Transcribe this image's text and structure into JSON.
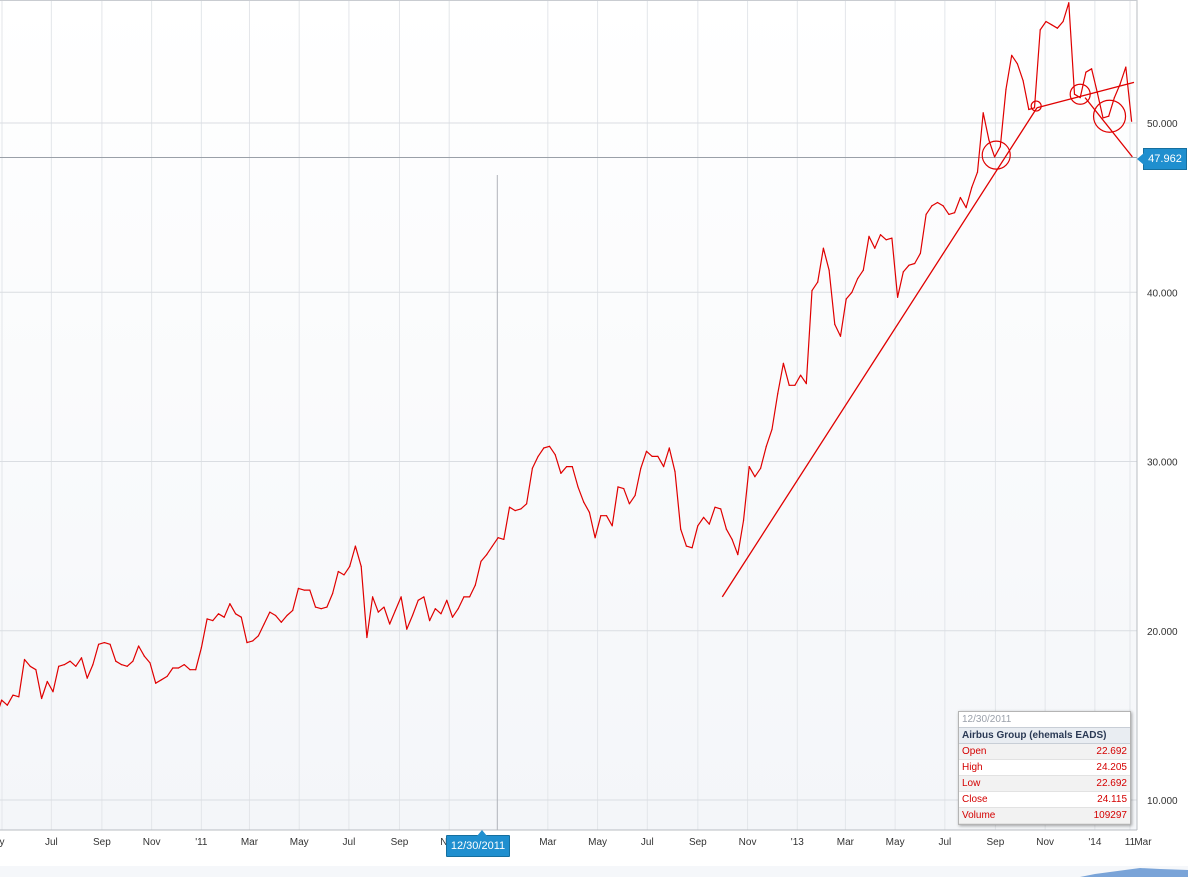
{
  "chart_data": {
    "type": "line",
    "title": "",
    "xlabel": "",
    "ylabel": "",
    "ylim": [
      8.2,
      57.2
    ],
    "grid": true,
    "y_ticks": [
      "10.000",
      "20.000",
      "30.000",
      "40.000",
      "50.000"
    ],
    "y_tick_values": [
      10,
      20,
      30,
      40,
      50
    ],
    "x_ticks": [
      {
        "label": "y",
        "date": "2010-05-01"
      },
      {
        "label": "Jul",
        "date": "2010-07-01"
      },
      {
        "label": "Sep",
        "date": "2010-09-01"
      },
      {
        "label": "Nov",
        "date": "2010-11-01"
      },
      {
        "label": "'11",
        "date": "2011-01-01"
      },
      {
        "label": "Mar",
        "date": "2011-03-01"
      },
      {
        "label": "May",
        "date": "2011-05-01"
      },
      {
        "label": "Jul",
        "date": "2011-07-01"
      },
      {
        "label": "Sep",
        "date": "2011-09-01"
      },
      {
        "label": "Nov",
        "date": "2011-11-01"
      },
      {
        "label": "Mar",
        "date": "2012-03-01"
      },
      {
        "label": "May",
        "date": "2012-05-01"
      },
      {
        "label": "Jul",
        "date": "2012-07-01"
      },
      {
        "label": "Sep",
        "date": "2012-09-01"
      },
      {
        "label": "Nov",
        "date": "2012-11-01"
      },
      {
        "label": "'13",
        "date": "2013-01-01"
      },
      {
        "label": "Mar",
        "date": "2013-03-01"
      },
      {
        "label": "May",
        "date": "2013-05-01"
      },
      {
        "label": "Jul",
        "date": "2013-07-01"
      },
      {
        "label": "Sep",
        "date": "2013-09-01"
      },
      {
        "label": "Nov",
        "date": "2013-11-01"
      },
      {
        "label": "'14",
        "date": "2014-01-01"
      },
      {
        "label": "Mar",
        "date": "2014-03-01"
      },
      {
        "label": "11",
        "date": "2014-04-11"
      }
    ],
    "series": [
      {
        "color": "#e00000",
        "points": [
          [
            "2010-04-20",
            14.2
          ],
          [
            "2010-05-01",
            15.9
          ],
          [
            "2010-05-08",
            15.6
          ],
          [
            "2010-05-15",
            16.2
          ],
          [
            "2010-05-22",
            16.1
          ],
          [
            "2010-05-29",
            18.3
          ],
          [
            "2010-06-05",
            17.9
          ],
          [
            "2010-06-12",
            17.7
          ],
          [
            "2010-06-19",
            16.0
          ],
          [
            "2010-06-26",
            17.0
          ],
          [
            "2010-07-03",
            16.4
          ],
          [
            "2010-07-10",
            17.9
          ],
          [
            "2010-07-17",
            18.0
          ],
          [
            "2010-07-24",
            18.2
          ],
          [
            "2010-07-31",
            17.9
          ],
          [
            "2010-08-07",
            18.4
          ],
          [
            "2010-08-14",
            17.2
          ],
          [
            "2010-08-21",
            18.0
          ],
          [
            "2010-08-28",
            19.2
          ],
          [
            "2010-09-04",
            19.3
          ],
          [
            "2010-09-11",
            19.2
          ],
          [
            "2010-09-18",
            18.2
          ],
          [
            "2010-09-25",
            18.0
          ],
          [
            "2010-10-02",
            17.9
          ],
          [
            "2010-10-09",
            18.2
          ],
          [
            "2010-10-16",
            19.1
          ],
          [
            "2010-10-23",
            18.5
          ],
          [
            "2010-10-30",
            18.1
          ],
          [
            "2010-11-06",
            16.9
          ],
          [
            "2010-11-13",
            17.1
          ],
          [
            "2010-11-20",
            17.3
          ],
          [
            "2010-11-27",
            17.8
          ],
          [
            "2010-12-04",
            17.8
          ],
          [
            "2010-12-11",
            18.0
          ],
          [
            "2010-12-18",
            17.7
          ],
          [
            "2010-12-25",
            17.7
          ],
          [
            "2011-01-01",
            19.0
          ],
          [
            "2011-01-08",
            20.7
          ],
          [
            "2011-01-15",
            20.6
          ],
          [
            "2011-01-22",
            21.0
          ],
          [
            "2011-01-29",
            20.8
          ],
          [
            "2011-02-05",
            21.6
          ],
          [
            "2011-02-12",
            21.0
          ],
          [
            "2011-02-19",
            20.8
          ],
          [
            "2011-02-26",
            19.3
          ],
          [
            "2011-03-05",
            19.4
          ],
          [
            "2011-03-12",
            19.7
          ],
          [
            "2011-03-19",
            20.4
          ],
          [
            "2011-03-26",
            21.1
          ],
          [
            "2011-04-02",
            20.9
          ],
          [
            "2011-04-09",
            20.5
          ],
          [
            "2011-04-16",
            20.9
          ],
          [
            "2011-04-23",
            21.2
          ],
          [
            "2011-04-30",
            22.5
          ],
          [
            "2011-05-07",
            22.4
          ],
          [
            "2011-05-14",
            22.4
          ],
          [
            "2011-05-21",
            21.4
          ],
          [
            "2011-05-28",
            21.3
          ],
          [
            "2011-06-04",
            21.4
          ],
          [
            "2011-06-11",
            22.2
          ],
          [
            "2011-06-18",
            23.5
          ],
          [
            "2011-06-25",
            23.3
          ],
          [
            "2011-07-02",
            23.8
          ],
          [
            "2011-07-09",
            25.0
          ],
          [
            "2011-07-16",
            23.8
          ],
          [
            "2011-07-23",
            19.6
          ],
          [
            "2011-07-30",
            22.0
          ],
          [
            "2011-08-06",
            21.1
          ],
          [
            "2011-08-13",
            21.4
          ],
          [
            "2011-08-20",
            20.4
          ],
          [
            "2011-08-27",
            21.2
          ],
          [
            "2011-09-03",
            22.0
          ],
          [
            "2011-09-10",
            20.1
          ],
          [
            "2011-09-17",
            20.9
          ],
          [
            "2011-09-24",
            21.8
          ],
          [
            "2011-10-01",
            22.0
          ],
          [
            "2011-10-08",
            20.6
          ],
          [
            "2011-10-15",
            21.3
          ],
          [
            "2011-10-22",
            21.0
          ],
          [
            "2011-10-29",
            21.8
          ],
          [
            "2011-11-05",
            20.8
          ],
          [
            "2011-11-12",
            21.3
          ],
          [
            "2011-11-19",
            22.0
          ],
          [
            "2011-11-26",
            22.0
          ],
          [
            "2011-12-03",
            22.7
          ],
          [
            "2011-12-10",
            24.1
          ],
          [
            "2011-12-17",
            24.5
          ],
          [
            "2011-12-24",
            25.0
          ],
          [
            "2011-12-31",
            25.5
          ],
          [
            "2012-01-07",
            25.4
          ],
          [
            "2012-01-14",
            27.3
          ],
          [
            "2012-01-21",
            27.1
          ],
          [
            "2012-01-28",
            27.2
          ],
          [
            "2012-02-04",
            27.5
          ],
          [
            "2012-02-11",
            29.6
          ],
          [
            "2012-02-18",
            30.3
          ],
          [
            "2012-02-25",
            30.8
          ],
          [
            "2012-03-03",
            30.9
          ],
          [
            "2012-03-10",
            30.4
          ],
          [
            "2012-03-17",
            29.3
          ],
          [
            "2012-03-24",
            29.7
          ],
          [
            "2012-03-31",
            29.7
          ],
          [
            "2012-04-07",
            28.5
          ],
          [
            "2012-04-14",
            27.6
          ],
          [
            "2012-04-21",
            27.0
          ],
          [
            "2012-04-28",
            25.5
          ],
          [
            "2012-05-05",
            26.8
          ],
          [
            "2012-05-12",
            26.8
          ],
          [
            "2012-05-19",
            26.2
          ],
          [
            "2012-05-26",
            28.5
          ],
          [
            "2012-06-02",
            28.4
          ],
          [
            "2012-06-09",
            27.5
          ],
          [
            "2012-06-16",
            28.0
          ],
          [
            "2012-06-23",
            29.6
          ],
          [
            "2012-06-30",
            30.6
          ],
          [
            "2012-07-07",
            30.3
          ],
          [
            "2012-07-14",
            30.3
          ],
          [
            "2012-07-21",
            29.7
          ],
          [
            "2012-07-28",
            30.8
          ],
          [
            "2012-08-04",
            29.4
          ],
          [
            "2012-08-11",
            26.0
          ],
          [
            "2012-08-18",
            25.0
          ],
          [
            "2012-08-25",
            24.9
          ],
          [
            "2012-09-01",
            26.2
          ],
          [
            "2012-09-08",
            26.7
          ],
          [
            "2012-09-15",
            26.3
          ],
          [
            "2012-09-22",
            27.3
          ],
          [
            "2012-09-29",
            27.2
          ],
          [
            "2012-10-06",
            26.0
          ],
          [
            "2012-10-13",
            25.4
          ],
          [
            "2012-10-20",
            24.5
          ],
          [
            "2012-10-27",
            26.5
          ],
          [
            "2012-11-03",
            29.7
          ],
          [
            "2012-11-10",
            29.1
          ],
          [
            "2012-11-17",
            29.6
          ],
          [
            "2012-11-24",
            30.9
          ],
          [
            "2012-12-01",
            31.9
          ],
          [
            "2012-12-08",
            34.0
          ],
          [
            "2012-12-15",
            35.8
          ],
          [
            "2012-12-22",
            34.5
          ],
          [
            "2012-12-29",
            34.5
          ],
          [
            "2013-01-05",
            35.1
          ],
          [
            "2013-01-12",
            34.6
          ],
          [
            "2013-01-19",
            40.1
          ],
          [
            "2013-01-26",
            40.6
          ],
          [
            "2013-02-02",
            42.6
          ],
          [
            "2013-02-09",
            41.3
          ],
          [
            "2013-02-16",
            38.1
          ],
          [
            "2013-02-23",
            37.4
          ],
          [
            "2013-03-02",
            39.6
          ],
          [
            "2013-03-09",
            40.0
          ],
          [
            "2013-03-16",
            40.8
          ],
          [
            "2013-03-23",
            41.3
          ],
          [
            "2013-03-30",
            43.3
          ],
          [
            "2013-04-06",
            42.6
          ],
          [
            "2013-04-13",
            43.4
          ],
          [
            "2013-04-20",
            43.1
          ],
          [
            "2013-04-27",
            43.2
          ],
          [
            "2013-05-04",
            39.7
          ],
          [
            "2013-05-11",
            41.2
          ],
          [
            "2013-05-18",
            41.6
          ],
          [
            "2013-05-25",
            41.7
          ],
          [
            "2013-06-01",
            42.3
          ],
          [
            "2013-06-08",
            44.6
          ],
          [
            "2013-06-15",
            45.1
          ],
          [
            "2013-06-22",
            45.3
          ],
          [
            "2013-06-29",
            45.1
          ],
          [
            "2013-07-06",
            44.6
          ],
          [
            "2013-07-13",
            44.7
          ],
          [
            "2013-07-20",
            45.6
          ],
          [
            "2013-07-27",
            45.0
          ],
          [
            "2013-08-03",
            46.2
          ],
          [
            "2013-08-10",
            47.1
          ],
          [
            "2013-08-17",
            50.6
          ],
          [
            "2013-08-24",
            49.0
          ],
          [
            "2013-08-31",
            48.0
          ],
          [
            "2013-09-07",
            48.6
          ],
          [
            "2013-09-14",
            52.0
          ],
          [
            "2013-09-21",
            54.0
          ],
          [
            "2013-09-28",
            53.5
          ],
          [
            "2013-10-05",
            52.5
          ],
          [
            "2013-10-12",
            50.8
          ],
          [
            "2013-10-19",
            50.9
          ],
          [
            "2013-10-26",
            55.5
          ],
          [
            "2013-11-02",
            56.0
          ],
          [
            "2013-11-09",
            55.8
          ],
          [
            "2013-11-16",
            55.6
          ],
          [
            "2013-11-23",
            56.0
          ],
          [
            "2013-11-30",
            57.1
          ],
          [
            "2013-12-07",
            51.7
          ],
          [
            "2013-12-14",
            51.5
          ],
          [
            "2013-12-21",
            53.0
          ],
          [
            "2013-12-28",
            53.2
          ],
          [
            "2014-01-04",
            51.8
          ],
          [
            "2014-01-11",
            50.3
          ],
          [
            "2014-01-18",
            50.4
          ],
          [
            "2014-01-25",
            51.5
          ],
          [
            "2014-02-01",
            52.3
          ],
          [
            "2014-02-08",
            53.3
          ],
          [
            "2014-02-15",
            50.1
          ]
        ]
      }
    ],
    "current_price_label": "47.962",
    "current_price": 47.962,
    "annotations": {
      "trendlines": [
        {
          "from": [
            "2012-10-01",
            22.0
          ],
          "to": [
            "2013-10-22",
            50.9
          ]
        },
        {
          "from": [
            "2013-10-22",
            50.9
          ],
          "to": [
            "2014-02-18",
            52.4
          ]
        },
        {
          "from": [
            "2013-12-20",
            51.5
          ],
          "to": [
            "2014-02-16",
            48.0
          ]
        }
      ],
      "circles": [
        {
          "date": "2013-09-02",
          "value": 48.1
        },
        {
          "date": "2013-10-21",
          "value": 51.0
        },
        {
          "date": "2013-12-14",
          "value": 51.7
        },
        {
          "date": "2014-01-19",
          "value": 50.4
        }
      ]
    },
    "crosshair_date": "2011-12-30"
  },
  "crosshair_label": "12/30/2011",
  "price_flag_label": "47.962",
  "tooltip": {
    "date": "12/30/2011",
    "title": "Airbus Group (ehemals EADS)",
    "rows": [
      {
        "label": "Open",
        "value": "22.692"
      },
      {
        "label": "High",
        "value": "24.205"
      },
      {
        "label": "Low",
        "value": "22.692"
      },
      {
        "label": "Close",
        "value": "24.115"
      },
      {
        "label": "Volume",
        "value": "109297"
      }
    ]
  }
}
